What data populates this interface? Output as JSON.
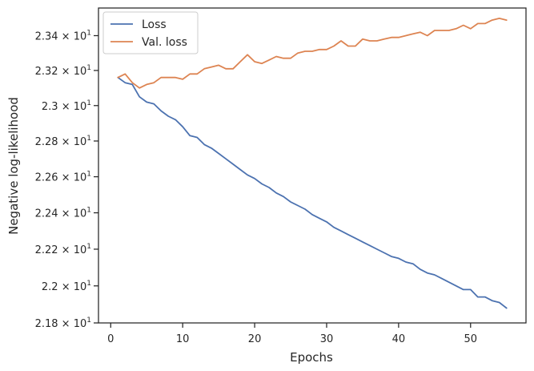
{
  "chart_data": {
    "type": "line",
    "title": "",
    "xlabel": "Epochs",
    "ylabel": "Negative log-likelihood",
    "xlim": [
      -1.7,
      57.7
    ],
    "ylim": [
      21.8,
      23.56
    ],
    "yscale": "log",
    "x_ticks": [
      0,
      10,
      20,
      30,
      40,
      50
    ],
    "x_tick_labels": [
      "0",
      "10",
      "20",
      "30",
      "40",
      "50"
    ],
    "y_ticks": [
      21.8,
      22.0,
      22.2,
      22.4,
      22.6,
      22.8,
      23.0,
      23.2,
      23.4
    ],
    "y_tick_labels": [
      {
        "mantissa": "2.18",
        "base": "10",
        "exp": "1"
      },
      {
        "mantissa": "2.2",
        "base": "10",
        "exp": "1"
      },
      {
        "mantissa": "2.22",
        "base": "10",
        "exp": "1"
      },
      {
        "mantissa": "2.24",
        "base": "10",
        "exp": "1"
      },
      {
        "mantissa": "2.26",
        "base": "10",
        "exp": "1"
      },
      {
        "mantissa": "2.28",
        "base": "10",
        "exp": "1"
      },
      {
        "mantissa": "2.3",
        "base": "10",
        "exp": "1"
      },
      {
        "mantissa": "2.32",
        "base": "10",
        "exp": "1"
      },
      {
        "mantissa": "2.34",
        "base": "10",
        "exp": "1"
      }
    ],
    "grid": false,
    "legend_position": "upper-left",
    "x": [
      1,
      2,
      3,
      4,
      5,
      6,
      7,
      8,
      9,
      10,
      11,
      12,
      13,
      14,
      15,
      16,
      17,
      18,
      19,
      20,
      21,
      22,
      23,
      24,
      25,
      26,
      27,
      28,
      29,
      30,
      31,
      32,
      33,
      34,
      35,
      36,
      37,
      38,
      39,
      40,
      41,
      42,
      43,
      44,
      45,
      46,
      47,
      48,
      49,
      50,
      51,
      52,
      53,
      54,
      55
    ],
    "series": [
      {
        "name": "Loss",
        "color": "#4c72b0",
        "values": [
          23.16,
          23.13,
          23.12,
          23.05,
          23.02,
          23.01,
          22.97,
          22.94,
          22.92,
          22.88,
          22.83,
          22.82,
          22.78,
          22.76,
          22.73,
          22.7,
          22.67,
          22.64,
          22.61,
          22.59,
          22.56,
          22.54,
          22.51,
          22.49,
          22.46,
          22.44,
          22.42,
          22.39,
          22.37,
          22.35,
          22.32,
          22.3,
          22.28,
          22.26,
          22.24,
          22.22,
          22.2,
          22.18,
          22.16,
          22.15,
          22.13,
          22.12,
          22.09,
          22.07,
          22.06,
          22.04,
          22.02,
          22.0,
          21.98,
          21.98,
          21.94,
          21.94,
          21.92,
          21.91,
          21.88
        ]
      },
      {
        "name": "Val. loss",
        "color": "#dd8452",
        "values": [
          23.16,
          23.18,
          23.13,
          23.1,
          23.12,
          23.13,
          23.16,
          23.16,
          23.16,
          23.15,
          23.18,
          23.18,
          23.21,
          23.22,
          23.23,
          23.21,
          23.21,
          23.25,
          23.29,
          23.25,
          23.24,
          23.26,
          23.28,
          23.27,
          23.27,
          23.3,
          23.31,
          23.31,
          23.32,
          23.32,
          23.34,
          23.37,
          23.34,
          23.34,
          23.38,
          23.37,
          23.37,
          23.38,
          23.39,
          23.39,
          23.4,
          23.41,
          23.42,
          23.4,
          23.43,
          23.43,
          23.43,
          23.44,
          23.46,
          23.44,
          23.47,
          23.47,
          23.49,
          23.5,
          23.49
        ]
      }
    ]
  }
}
